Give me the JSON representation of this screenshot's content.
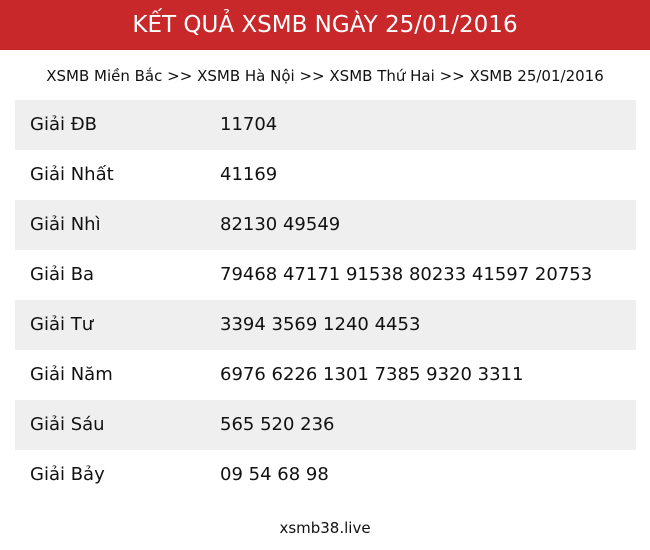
{
  "header": {
    "title": "KẾT QUẢ XSMB NGÀY 25/01/2016",
    "color": "#c9282b"
  },
  "breadcrumb": {
    "items": [
      "XSMB Miền Bắc",
      "XSMB Hà Nội",
      "XSMB Thứ Hai",
      "XSMB 25/01/2016"
    ],
    "separator": ">>"
  },
  "results": [
    {
      "label": "Giải ĐB",
      "value": "11704"
    },
    {
      "label": "Giải Nhất",
      "value": "41169"
    },
    {
      "label": "Giải Nhì",
      "value": "82130 49549"
    },
    {
      "label": "Giải Ba",
      "value": "79468 47171 91538 80233 41597 20753"
    },
    {
      "label": "Giải Tư",
      "value": "3394 3569 1240 4453"
    },
    {
      "label": "Giải Năm",
      "value": "6976 6226 1301 7385 9320 3311"
    },
    {
      "label": "Giải Sáu",
      "value": "565 520 236"
    },
    {
      "label": "Giải Bảy",
      "value": "09 54 68 98"
    }
  ],
  "footer": {
    "site": "xsmb38.live"
  }
}
